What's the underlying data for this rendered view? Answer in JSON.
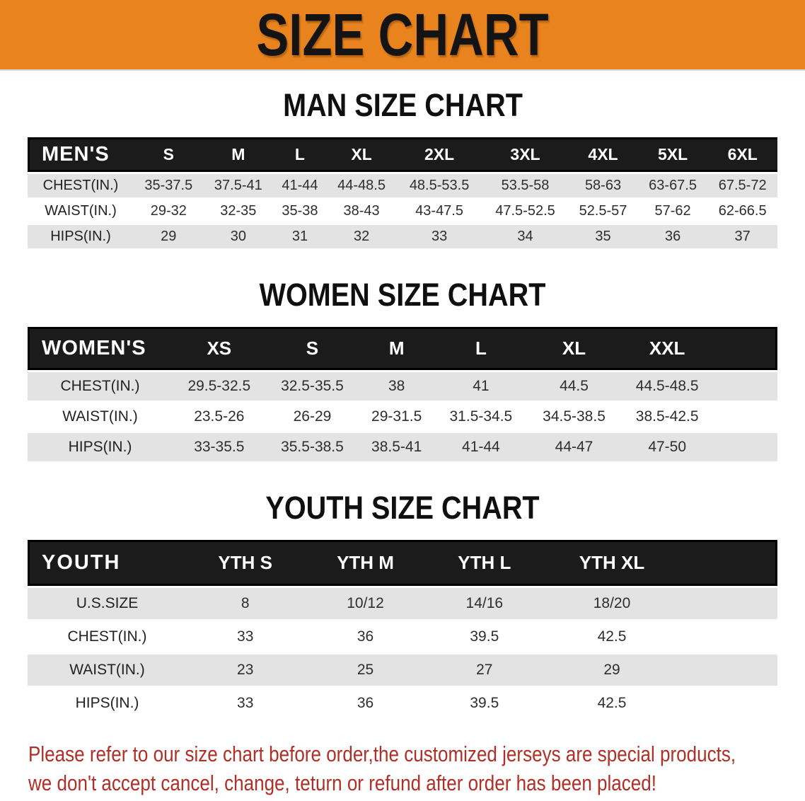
{
  "banner": {
    "title": "SIZE CHART"
  },
  "colors": {
    "banner_bg": "#E8831E",
    "table_header_bg": "#1b1b1b",
    "row_stripe_gray": "#e3e3e3",
    "disclaimer_red": "#B12F26"
  },
  "tables": [
    {
      "key": "men",
      "heading": "MAN SIZE CHART",
      "header_label": "MEN'S",
      "sizes": [
        "S",
        "M",
        "L",
        "XL",
        "2XL",
        "3XL",
        "4XL",
        "5XL",
        "6XL"
      ],
      "rows": [
        {
          "label": "CHEST(IN.)",
          "values": [
            "35-37.5",
            "37.5-41",
            "41-44",
            "44-48.5",
            "48.5-53.5",
            "53.5-58",
            "58-63",
            "63-67.5",
            "67.5-72"
          ]
        },
        {
          "label": "WAIST(IN.)",
          "values": [
            "29-32",
            "32-35",
            "35-38",
            "38-43",
            "43-47.5",
            "47.5-52.5",
            "52.5-57",
            "57-62",
            "62-66.5"
          ]
        },
        {
          "label": "HIPS(IN.)",
          "values": [
            "29",
            "30",
            "31",
            "32",
            "33",
            "34",
            "35",
            "36",
            "37"
          ]
        }
      ]
    },
    {
      "key": "women",
      "heading": "WOMEN SIZE CHART",
      "header_label": "WOMEN'S",
      "sizes": [
        "XS",
        "S",
        "M",
        "L",
        "XL",
        "XXL"
      ],
      "rows": [
        {
          "label": "CHEST(IN.)",
          "values": [
            "29.5-32.5",
            "32.5-35.5",
            "38",
            "41",
            "44.5",
            "44.5-48.5"
          ]
        },
        {
          "label": "WAIST(IN.)",
          "values": [
            "23.5-26",
            "26-29",
            "29-31.5",
            "31.5-34.5",
            "34.5-38.5",
            "38.5-42.5"
          ]
        },
        {
          "label": "HIPS(IN.)",
          "values": [
            "33-35.5",
            "35.5-38.5",
            "38.5-41",
            "41-44",
            "44-47",
            "47-50"
          ]
        }
      ]
    },
    {
      "key": "youth",
      "heading": "YOUTH SIZE CHART",
      "header_label": "YOUTH",
      "sizes": [
        "YTH S",
        "YTH M",
        "YTH L",
        "YTH XL"
      ],
      "rows": [
        {
          "label": "U.S.SIZE",
          "values": [
            "8",
            "10/12",
            "14/16",
            "18/20"
          ]
        },
        {
          "label": "CHEST(IN.)",
          "values": [
            "33",
            "36",
            "39.5",
            "42.5"
          ]
        },
        {
          "label": "WAIST(IN.)",
          "values": [
            "23",
            "25",
            "27",
            "29"
          ]
        },
        {
          "label": "HIPS(IN.)",
          "values": [
            "33",
            "36",
            "39.5",
            "42.5"
          ]
        }
      ]
    }
  ],
  "disclaimer": {
    "line1": "Please refer to our size chart before order,the customized jerseys are special products,",
    "line2": "we don't accept cancel, change, teturn or refund after order has been placed!"
  }
}
